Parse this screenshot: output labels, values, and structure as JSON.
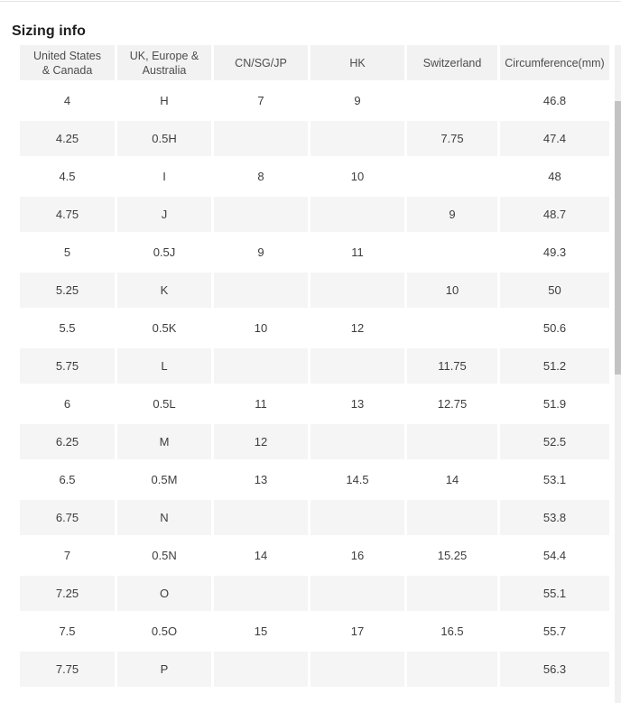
{
  "page": {
    "title": "Sizing info"
  },
  "table": {
    "headers": [
      {
        "label": "United States & Canada",
        "lines": [
          "United States",
          "& Canada"
        ]
      },
      {
        "label": "UK, Europe & Australia",
        "lines": [
          "UK, Europe &",
          "Australia"
        ]
      },
      {
        "label": "CN/SG/JP",
        "lines": [
          "CN/SG/JP"
        ]
      },
      {
        "label": "HK",
        "lines": [
          "HK"
        ]
      },
      {
        "label": "Switzerland",
        "lines": [
          "Switzerland"
        ]
      },
      {
        "label": "Circumference(mm)",
        "lines": [
          "Circumference(mm)"
        ]
      }
    ],
    "rows": [
      [
        "4",
        "H",
        "7",
        "9",
        "",
        "46.8"
      ],
      [
        "4.25",
        "0.5H",
        "",
        "",
        "7.75",
        "47.4"
      ],
      [
        "4.5",
        "I",
        "8",
        "10",
        "",
        "48"
      ],
      [
        "4.75",
        "J",
        "",
        "",
        "9",
        "48.7"
      ],
      [
        "5",
        "0.5J",
        "9",
        "11",
        "",
        "49.3"
      ],
      [
        "5.25",
        "K",
        "",
        "",
        "10",
        "50"
      ],
      [
        "5.5",
        "0.5K",
        "10",
        "12",
        "",
        "50.6"
      ],
      [
        "5.75",
        "L",
        "",
        "",
        "11.75",
        "51.2"
      ],
      [
        "6",
        "0.5L",
        "11",
        "13",
        "12.75",
        "51.9"
      ],
      [
        "6.25",
        "M",
        "12",
        "",
        "",
        "52.5"
      ],
      [
        "6.5",
        "0.5M",
        "13",
        "14.5",
        "14",
        "53.1"
      ],
      [
        "6.75",
        "N",
        "",
        "",
        "",
        "53.8"
      ],
      [
        "7",
        "0.5N",
        "14",
        "16",
        "15.25",
        "54.4"
      ],
      [
        "7.25",
        "O",
        "",
        "",
        "",
        "55.1"
      ],
      [
        "7.5",
        "0.5O",
        "15",
        "17",
        "16.5",
        "55.7"
      ],
      [
        "7.75",
        "P",
        "",
        "",
        "",
        "56.3"
      ]
    ]
  },
  "colors": {
    "page_bg": "#ffffff",
    "top_border": "#e4e4e4",
    "header_bg": "#f2f2f2",
    "row_alt_bg": "#f5f5f5",
    "title_text": "#1d1d1d",
    "header_text": "#4d4d4d",
    "cell_text": "#3d3d3d",
    "scrollbar_track": "#f1f1f1",
    "scrollbar_thumb": "#c3c3c3"
  }
}
